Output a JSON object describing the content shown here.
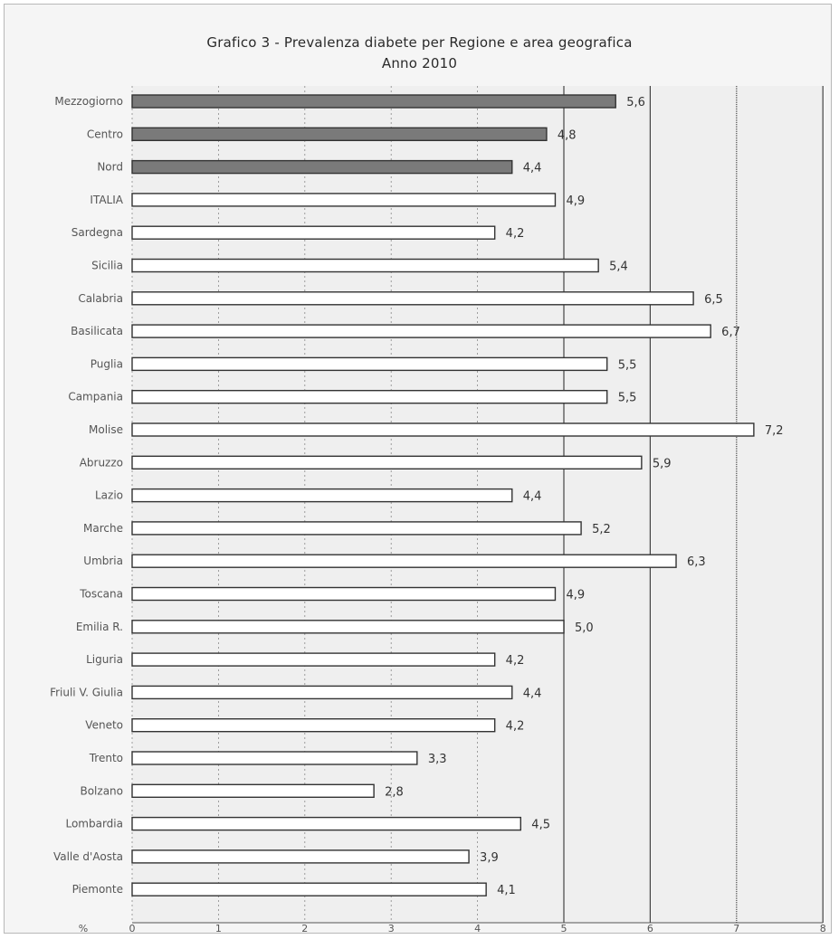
{
  "chart_data": {
    "type": "bar",
    "orientation": "horizontal",
    "title": "Grafico 3 - Prevalenza diabete per Regione e area geografica",
    "subtitle": "Anno 2010",
    "categories": [
      "Mezzogiorno",
      "Centro",
      "Nord",
      "ITALIA",
      "Sardegna",
      "Sicilia",
      "Calabria",
      "Basilicata",
      "Puglia",
      "Campania",
      "Molise",
      "Abruzzo",
      "Lazio",
      "Marche",
      "Umbria",
      "Toscana",
      "Emilia R.",
      "Liguria",
      "Friuli V. Giulia",
      "Veneto",
      "Trento",
      "Bolzano",
      "Lombardia",
      "Valle d'Aosta",
      "Piemonte"
    ],
    "values": [
      5.6,
      4.8,
      4.4,
      4.9,
      4.2,
      5.4,
      6.5,
      6.7,
      5.5,
      5.5,
      7.2,
      5.9,
      4.4,
      5.2,
      6.3,
      4.9,
      5.0,
      4.2,
      4.4,
      4.2,
      3.3,
      2.8,
      4.5,
      3.9,
      4.1
    ],
    "value_labels": [
      "5,6",
      "4,8",
      "4,4",
      "4,9",
      "4,2",
      "5,4",
      "6,5",
      "6,7",
      "5,5",
      "5,5",
      "7,2",
      "5,9",
      "4,4",
      "5,2",
      "6,3",
      "4,9",
      "5,0",
      "4,2",
      "4,4",
      "4,2",
      "3,3",
      "2,8",
      "4,5",
      "3,9",
      "4,1"
    ],
    "highlight": [
      "Mezzogiorno",
      "Centro",
      "Nord"
    ],
    "x_ticks": [
      "0",
      "1",
      "2",
      "3",
      "4",
      "5",
      "6",
      "7",
      "8"
    ],
    "x_unit_label": "%",
    "xlim": [
      0,
      8
    ],
    "grid": "vertical",
    "colors": {
      "area_bar": "#7a7a7a",
      "region_bar": "#ffffff",
      "bar_border": "#333333",
      "grid": "#444444"
    }
  }
}
